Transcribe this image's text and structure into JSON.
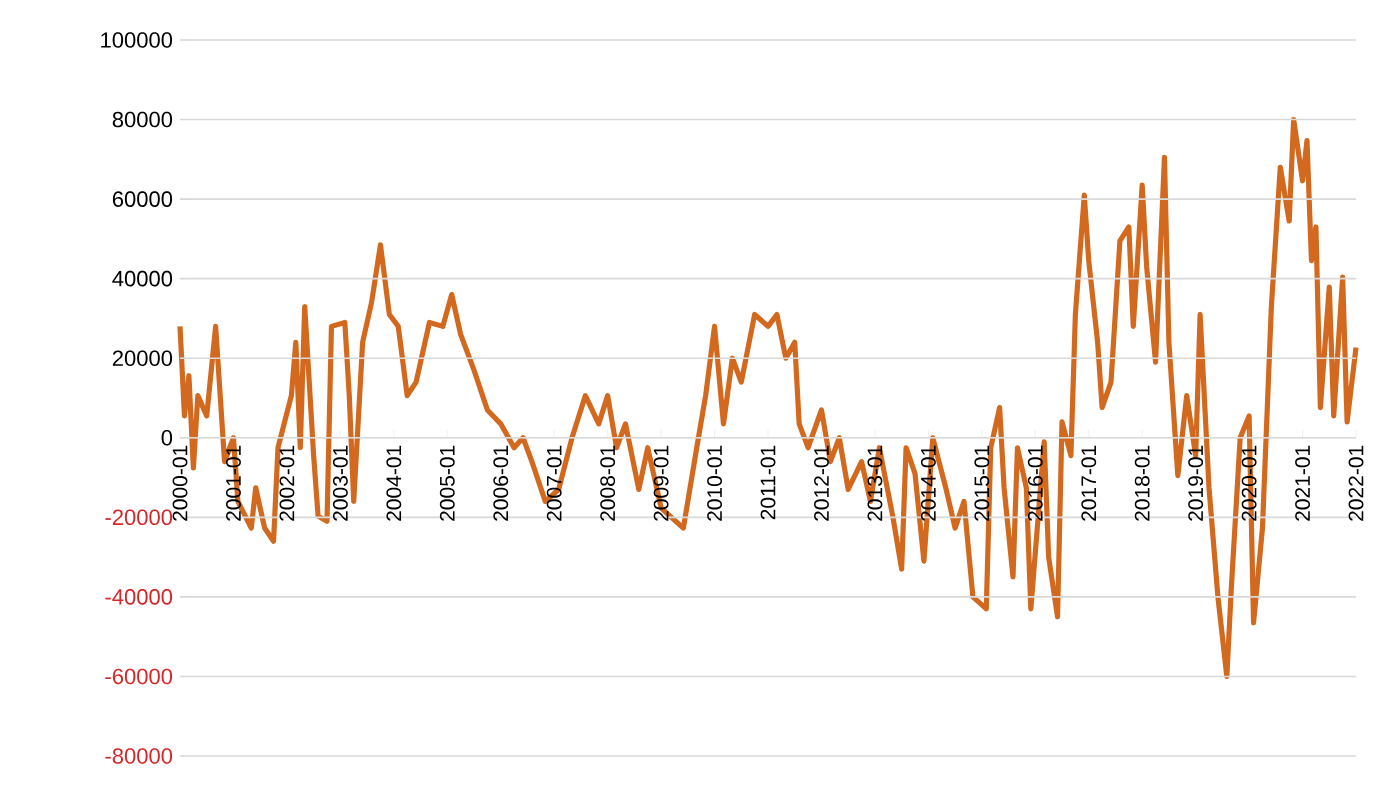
{
  "chart_data": {
    "type": "line",
    "grid": "y",
    "xlim": [
      "2000-01",
      "2022-01"
    ],
    "xticks": [
      "2000-01",
      "2001-01",
      "2002-01",
      "2003-01",
      "2004-01",
      "2005-01",
      "2006-01",
      "2007-01",
      "2008-01",
      "2009-01",
      "2010-01",
      "2011-01",
      "2012-01",
      "2013-01",
      "2014-01",
      "2015-01",
      "2016-01",
      "2017-01",
      "2018-01",
      "2019-01",
      "2020-01",
      "2021-01",
      "2022-01"
    ],
    "ylim": [
      -80000,
      100000
    ],
    "yticks": [
      -80000,
      -60000,
      -40000,
      -20000,
      0,
      20000,
      40000,
      60000,
      80000,
      100000
    ],
    "x": [
      "2000-01",
      "2000-02",
      "2000-03",
      "2000-04",
      "2000-05",
      "2000-07",
      "2000-09",
      "2000-11",
      "2001-01",
      "2001-02",
      "2001-05",
      "2001-06",
      "2001-08",
      "2001-10",
      "2001-11",
      "2002-02",
      "2002-03",
      "2002-04",
      "2002-05",
      "2002-07",
      "2002-08",
      "2002-10",
      "2002-11",
      "2003-02",
      "2003-03",
      "2003-04",
      "2003-06",
      "2003-08",
      "2003-10",
      "2003-12",
      "2004-02",
      "2004-04",
      "2004-06",
      "2004-09",
      "2004-12",
      "2005-02",
      "2005-04",
      "2005-07",
      "2005-10",
      "2006-01",
      "2006-04",
      "2006-06",
      "2006-08",
      "2006-11",
      "2007-02",
      "2007-05",
      "2007-08",
      "2007-11",
      "2008-01",
      "2008-03",
      "2008-05",
      "2008-08",
      "2008-10",
      "2009-01",
      "2009-03",
      "2009-06",
      "2009-09",
      "2009-11",
      "2010-01",
      "2010-03",
      "2010-05",
      "2010-07",
      "2010-10",
      "2011-01",
      "2011-03",
      "2011-05",
      "2011-07",
      "2011-08",
      "2011-10",
      "2012-01",
      "2012-03",
      "2012-05",
      "2012-07",
      "2012-10",
      "2012-12",
      "2013-02",
      "2013-05",
      "2013-07",
      "2013-08",
      "2013-10",
      "2013-12",
      "2014-02",
      "2014-05",
      "2014-07",
      "2014-09",
      "2014-11",
      "2015-02",
      "2015-03",
      "2015-05",
      "2015-06",
      "2015-08",
      "2015-09",
      "2015-11",
      "2015-12",
      "2016-03",
      "2016-04",
      "2016-06",
      "2016-07",
      "2016-09",
      "2016-10",
      "2016-12",
      "2017-01",
      "2017-03",
      "2017-04",
      "2017-06",
      "2017-08",
      "2017-10",
      "2017-11",
      "2018-01",
      "2018-02",
      "2018-04",
      "2018-06",
      "2018-07",
      "2018-09",
      "2018-11",
      "2019-01",
      "2019-02",
      "2019-04",
      "2019-06",
      "2019-08",
      "2019-09",
      "2019-11",
      "2020-01",
      "2020-02",
      "2020-04",
      "2020-06",
      "2020-08",
      "2020-10",
      "2020-11",
      "2021-01",
      "2021-02",
      "2021-03",
      "2021-04",
      "2021-05",
      "2021-07",
      "2021-08",
      "2021-10",
      "2021-11",
      "2022-01"
    ],
    "series": [
      {
        "color": "#d2691e",
        "values": [
          28000,
          5500,
          15600,
          -7600,
          10600,
          5500,
          28000,
          -6000,
          0,
          -16000,
          -22700,
          -12600,
          -22700,
          -26000,
          -2500,
          10600,
          24000,
          -2500,
          33000,
          -4500,
          -19700,
          -21000,
          28000,
          29000,
          10600,
          -16000,
          24000,
          34000,
          48500,
          31000,
          28000,
          10600,
          14000,
          29000,
          28000,
          36000,
          26000,
          17000,
          7000,
          3500,
          -2500,
          0,
          -6000,
          -16000,
          -13000,
          0,
          10600,
          3500,
          10600,
          -2500,
          3500,
          -13000,
          -2500,
          -17600,
          -19700,
          -22700,
          -2500,
          10600,
          28000,
          3500,
          20000,
          14000,
          31000,
          28000,
          31000,
          20000,
          24000,
          3500,
          -2500,
          7000,
          -6000,
          0,
          -13000,
          -6000,
          -16000,
          -2500,
          -19700,
          -33000,
          -2500,
          -9000,
          -31000,
          0,
          -13000,
          -22700,
          -16000,
          -40000,
          -43000,
          -2500,
          7600,
          -12600,
          -35000,
          -2500,
          -12600,
          -43000,
          -1000,
          -30000,
          -45000,
          4000,
          -4500,
          31000,
          61000,
          44500,
          24000,
          7600,
          14000,
          49500,
          53000,
          28000,
          63500,
          43000,
          19000,
          70500,
          24000,
          -9500,
          10600,
          -4500,
          31000,
          -12600,
          -40000,
          -60000,
          -38000,
          0,
          5500,
          -46500,
          -22700,
          33000,
          68000,
          54500,
          80000,
          64600,
          74700,
          44500,
          53000,
          7600,
          37900,
          5500,
          40400,
          4000,
          22700
        ]
      }
    ]
  }
}
